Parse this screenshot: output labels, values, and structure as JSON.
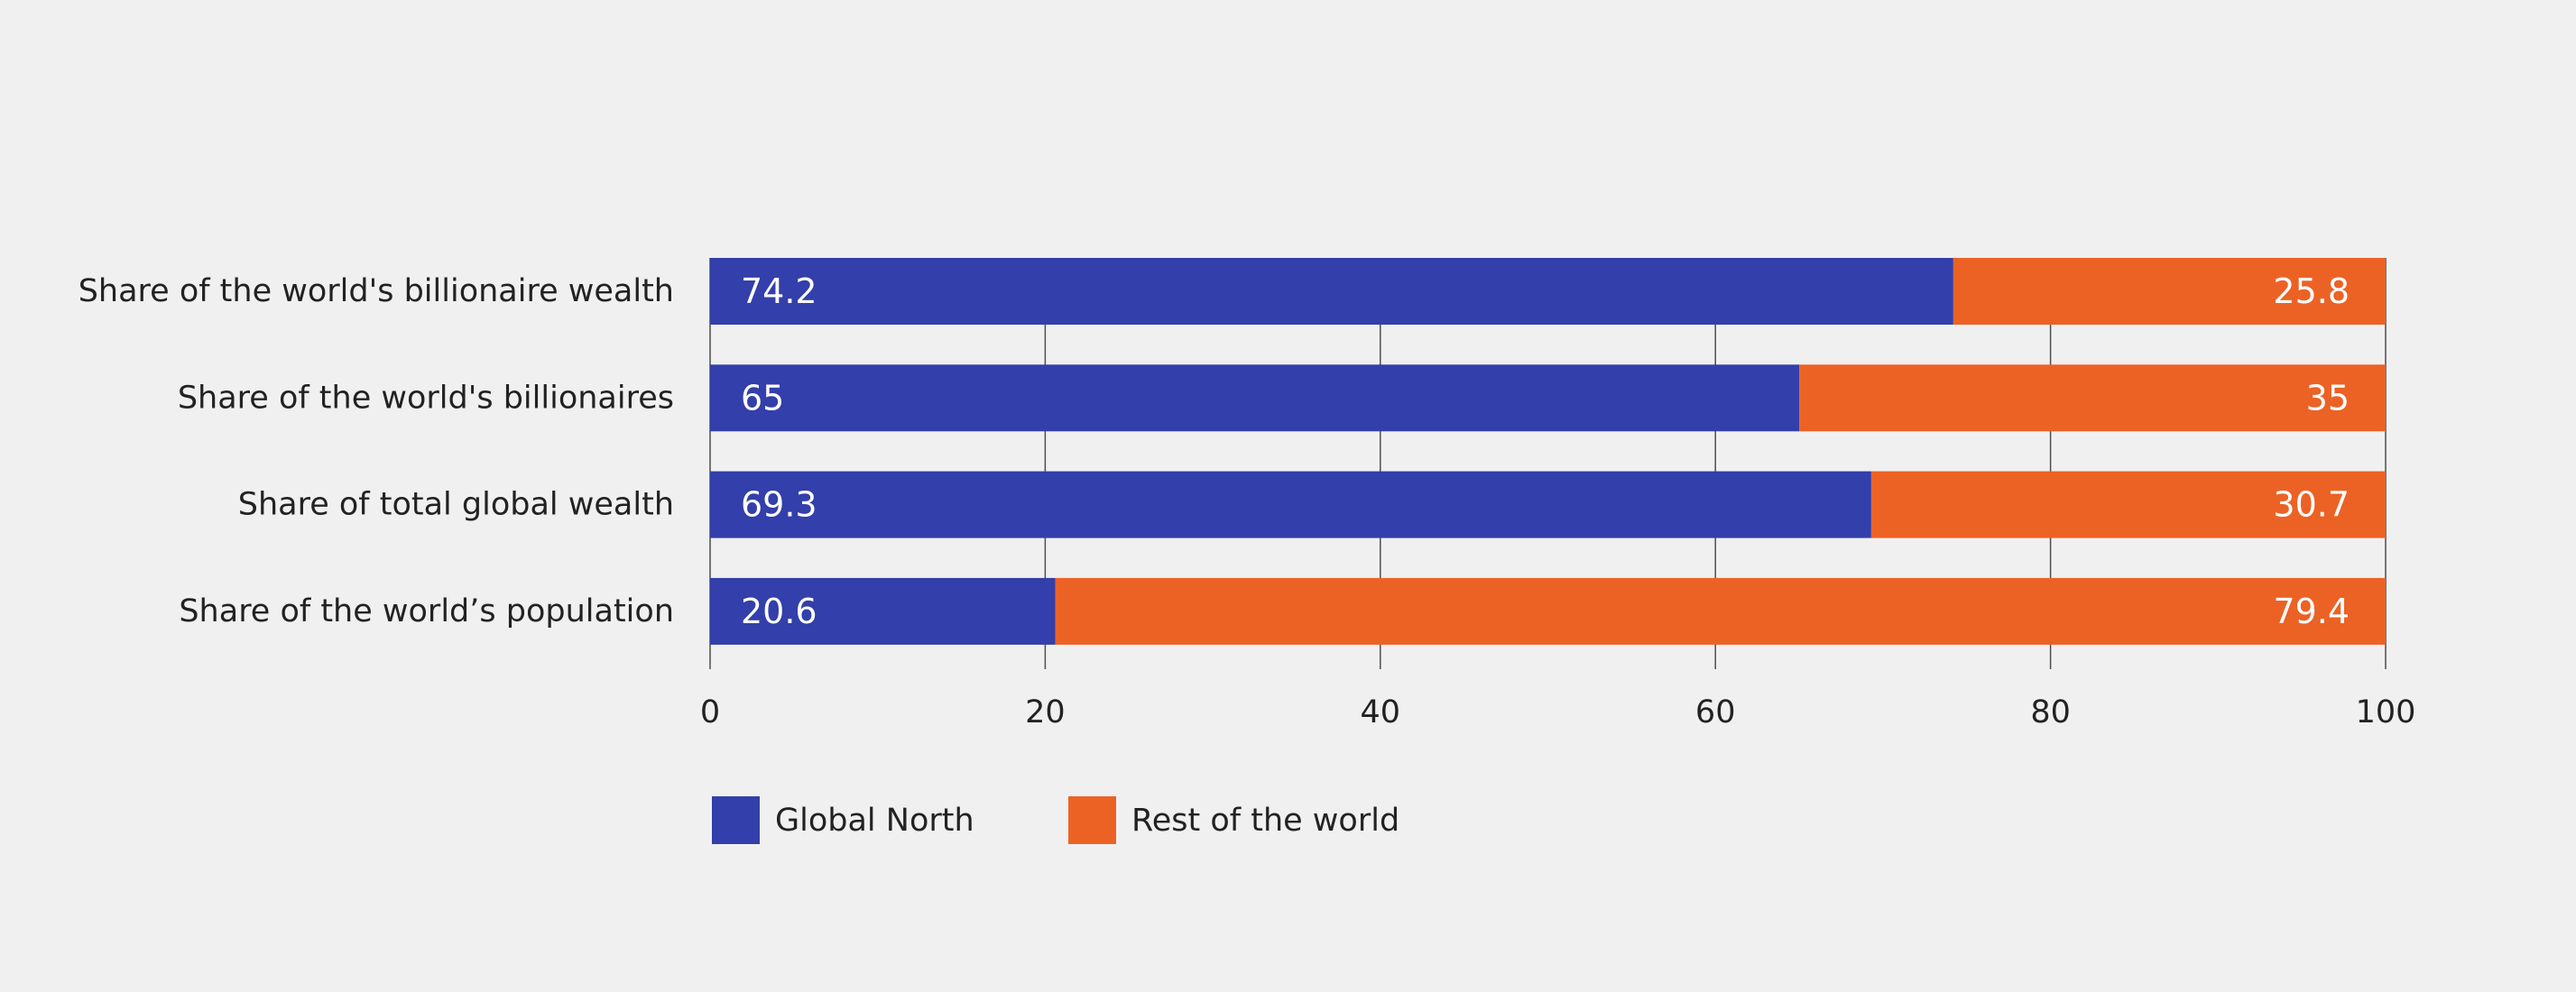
{
  "chart_data": {
    "type": "bar",
    "orientation": "horizontal",
    "stacked": true,
    "categories": [
      "Share of the world's billionaire wealth",
      "Share of the world's billionaires",
      "Share of total global wealth",
      "Share of the world’s population"
    ],
    "series": [
      {
        "name": "Global North",
        "color": "#333faa",
        "values": [
          74.2,
          65,
          69.3,
          20.6
        ],
        "labels": [
          "74.2",
          "65",
          "69.3",
          "20.6"
        ]
      },
      {
        "name": "Rest of the world",
        "color": "#ec6225",
        "values": [
          25.8,
          35,
          30.7,
          79.4
        ],
        "labels": [
          "25.8",
          "35",
          "30.7",
          "79.4"
        ]
      }
    ],
    "xlim": [
      0,
      100
    ],
    "xticks": [
      0,
      20,
      40,
      60,
      80,
      100
    ],
    "xtick_labels": [
      "0",
      "20",
      "40",
      "60",
      "80",
      "100"
    ],
    "xlabel": "",
    "ylabel": "",
    "title": "",
    "grid": "vertical",
    "legend": "bottom-left",
    "colors": {
      "background": "#f0f0f0",
      "grid": "#4d4d4d",
      "text": "#222222",
      "bar_label": "#ffffff"
    }
  }
}
